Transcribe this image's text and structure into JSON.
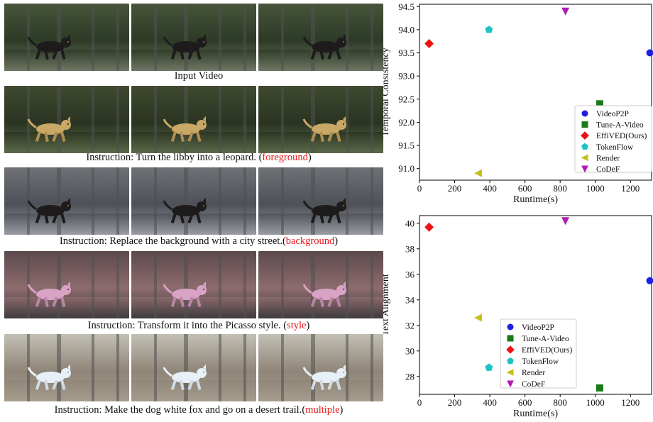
{
  "rows": [
    {
      "caption_prefix": "Input Video",
      "caption_tag": "",
      "caption_suffix": "",
      "scene_colors": [
        "#47553a",
        "#2d3a26",
        "#6f7864"
      ],
      "subject": "dog-black"
    },
    {
      "caption_prefix": "Instruction: Turn the libby into a leopard. (",
      "caption_tag": "foreground",
      "caption_suffix": ")",
      "scene_colors": [
        "#3f4a30",
        "#2a3421",
        "#5d6a4a"
      ],
      "subject": "leopard"
    },
    {
      "caption_prefix": "Instruction: Replace the background with a city street.(",
      "caption_tag": "background",
      "caption_suffix": ")",
      "scene_colors": [
        "#6f7176",
        "#4e5158",
        "#9a9da3"
      ],
      "subject": "dog-black"
    },
    {
      "caption_prefix": "Instruction: Transform it into the Picasso style. (",
      "caption_tag": "style",
      "caption_suffix": ")",
      "scene_colors": [
        "#5c4a4c",
        "#8d6b6e",
        "#3e3a3c"
      ],
      "subject": "dog-pink"
    },
    {
      "caption_prefix": "Instruction: Make the dog white fox and go on a desert trail.(",
      "caption_tag": "multiple",
      "caption_suffix": ")",
      "scene_colors": [
        "#c4c0b6",
        "#8f8578",
        "#a79d8d"
      ],
      "subject": "dog-white"
    }
  ],
  "chart_data": [
    {
      "type": "scatter",
      "xlabel": "Runtime(s)",
      "ylabel": "Temporal Consistency",
      "xlim": [
        0,
        1320
      ],
      "ylim": [
        90.75,
        94.55
      ],
      "xticks": [
        0,
        200,
        400,
        600,
        800,
        1000,
        1200
      ],
      "yticks": [
        91.0,
        91.5,
        92.0,
        92.5,
        93.0,
        93.5,
        94.0,
        94.5
      ],
      "ytick_labels": [
        "91.0",
        "91.5",
        "92.0",
        "92.5",
        "93.0",
        "93.5",
        "94.0",
        "94.5"
      ],
      "legend_position": "lower-right",
      "grid": false,
      "series": [
        {
          "name": "VideoP2P",
          "marker": "circle",
          "color": "#1f1fe0",
          "x": 1310,
          "y": 93.5
        },
        {
          "name": "Tune-A-Video",
          "marker": "square",
          "color": "#1a7a1a",
          "x": 1025,
          "y": 92.4
        },
        {
          "name": "EffiVED(Ours)",
          "marker": "diamond",
          "color": "#ee1111",
          "x": 55,
          "y": 93.7
        },
        {
          "name": "TokenFlow",
          "marker": "pentagon",
          "color": "#1fc2c2",
          "x": 395,
          "y": 94.0
        },
        {
          "name": "Render",
          "marker": "triangle-left",
          "color": "#c2c21a",
          "x": 335,
          "y": 90.9
        },
        {
          "name": "CoDeF",
          "marker": "triangle-down",
          "color": "#b21ab2",
          "x": 830,
          "y": 94.4
        }
      ]
    },
    {
      "type": "scatter",
      "xlabel": "Runtime(s)",
      "ylabel": "Text Alignment",
      "xlim": [
        0,
        1320
      ],
      "ylim": [
        26.6,
        40.6
      ],
      "xticks": [
        0,
        200,
        400,
        600,
        800,
        1000,
        1200
      ],
      "yticks": [
        28,
        30,
        32,
        34,
        36,
        38,
        40
      ],
      "ytick_labels": [
        "28",
        "30",
        "32",
        "34",
        "36",
        "38",
        "40"
      ],
      "legend_position": "bottom-center",
      "grid": false,
      "series": [
        {
          "name": "VideoP2P",
          "marker": "circle",
          "color": "#1f1fe0",
          "x": 1310,
          "y": 35.5
        },
        {
          "name": "Tune-A-Video",
          "marker": "square",
          "color": "#1a7a1a",
          "x": 1025,
          "y": 27.1
        },
        {
          "name": "EffiVED(Ours)",
          "marker": "diamond",
          "color": "#ee1111",
          "x": 55,
          "y": 39.7
        },
        {
          "name": "TokenFlow",
          "marker": "pentagon",
          "color": "#1fc2c2",
          "x": 395,
          "y": 28.7
        },
        {
          "name": "Render",
          "marker": "triangle-left",
          "color": "#c2c21a",
          "x": 335,
          "y": 32.6
        },
        {
          "name": "CoDeF",
          "marker": "triangle-down",
          "color": "#b21ab2",
          "x": 830,
          "y": 40.2
        }
      ]
    }
  ]
}
